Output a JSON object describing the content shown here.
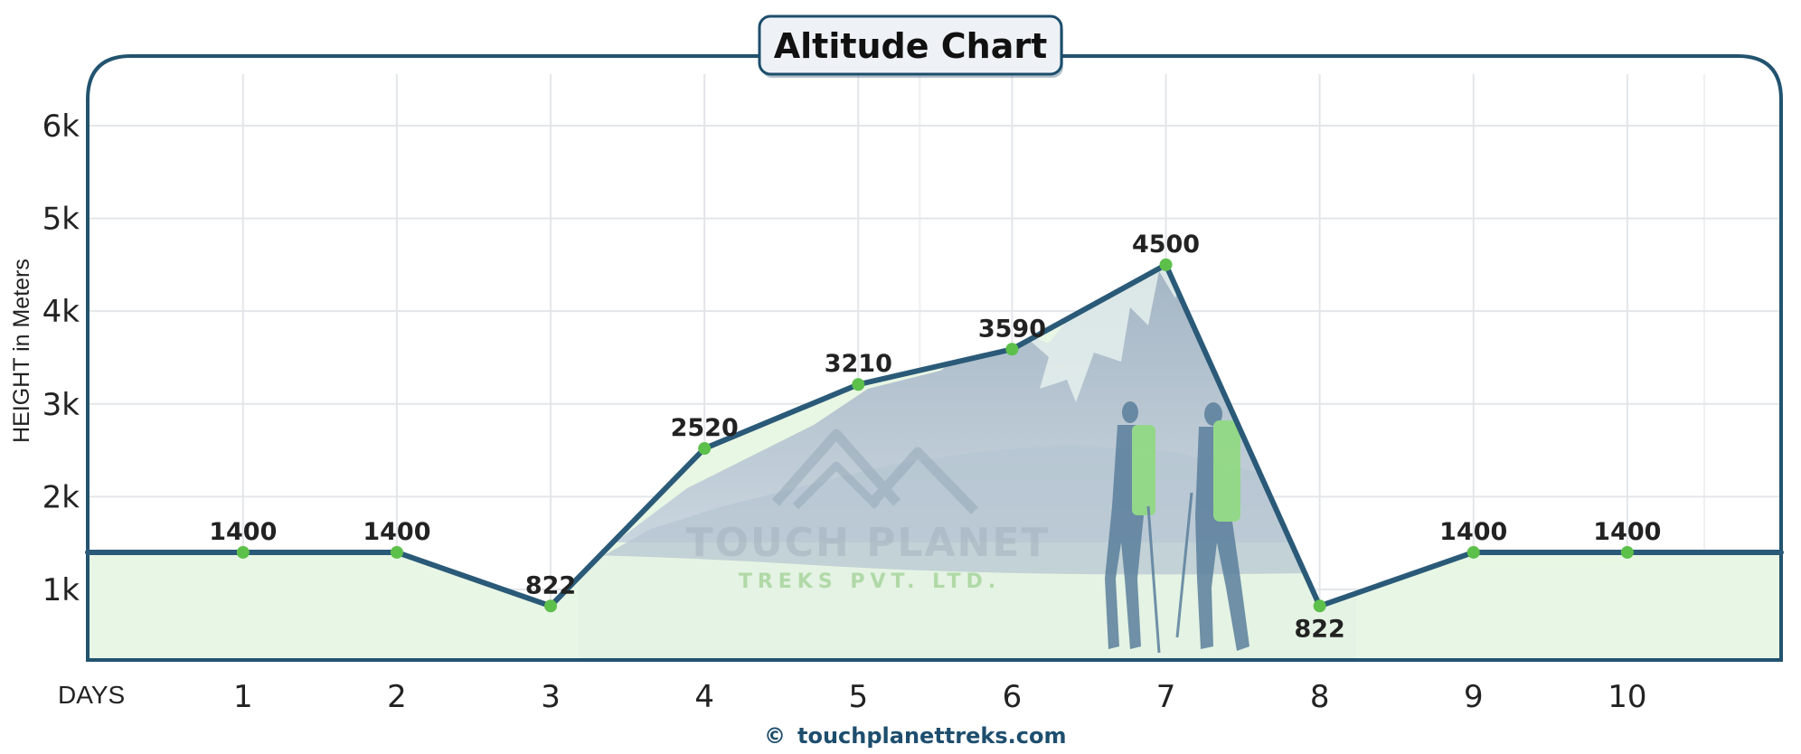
{
  "chart_data": {
    "type": "line",
    "title": "Altitude Chart",
    "xlabel": "DAYS",
    "ylabel": "HEIGHT in Meters",
    "x": [
      1,
      2,
      3,
      4,
      5,
      6,
      7,
      8,
      9,
      10
    ],
    "y": [
      1400,
      1400,
      822,
      2520,
      3210,
      3590,
      4500,
      822,
      1400,
      1400
    ],
    "data_labels": [
      "1400",
      "1400",
      "822",
      "2520",
      "3210",
      "3590",
      "4500",
      "822",
      "1400",
      "1400"
    ],
    "x_tick_labels": [
      "1",
      "2",
      "3",
      "4",
      "5",
      "6",
      "7",
      "8",
      "9",
      "10"
    ],
    "y_ticks": [
      1000,
      2000,
      3000,
      4000,
      5000,
      6000
    ],
    "y_tick_labels": [
      "1k",
      "2k",
      "3k",
      "4k",
      "5k",
      "6k"
    ],
    "xlim": [
      -0.01,
      11.0
    ],
    "ylim": [
      240,
      6750
    ],
    "grid": true,
    "line_color": "#2a5a78",
    "marker_color": "#5cc04a",
    "fill_color": "#e8f6e4"
  },
  "watermark": {
    "line1": "TOUCH PLANET",
    "line2": "TREKS PVT. LTD."
  },
  "footer": {
    "copyright_symbol": "©",
    "website": "touchplanettreks.com"
  }
}
